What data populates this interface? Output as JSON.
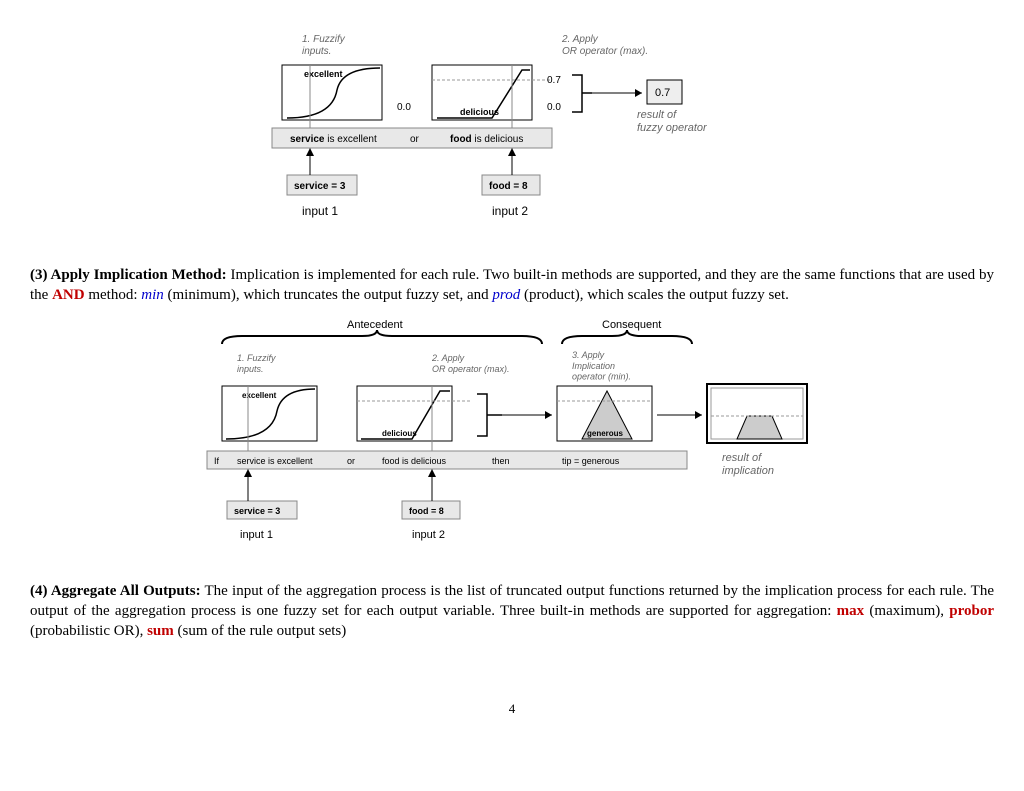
{
  "figure1": {
    "step1_label": "1. Fuzzify\ninputs.",
    "step2_label": "2. Apply\nOR operator (max).",
    "box1_label": "excellent",
    "box2_label": "delicious",
    "val1": "0.0",
    "val2_top": "0.7",
    "val2_bot": "0.0",
    "result_val": "0.7",
    "result_text": "result of\nfuzzy operator",
    "rule_bar_left": "service is excellent",
    "rule_bar_mid": "or",
    "rule_bar_right": "food is delicious",
    "input1_box": "service = 3",
    "input2_box": "food = 8",
    "input1_label": "input 1",
    "input2_label": "input 2",
    "colors": {
      "stroke": "#000000",
      "fill_light": "#e8e8e8",
      "fill_gray": "#cccccc",
      "text_gray": "#555555",
      "text_italic": "#707070"
    }
  },
  "para3": {
    "heading": "(3) Apply Implication Method:",
    "t1": " Implication is implemented for each rule. Two built-in methods are supported, and they are the same functions that are used by the ",
    "and": "AND",
    "t2": " method: ",
    "min": "min",
    "t3": " (minimum), which truncates the output fuzzy set, and ",
    "prod": "prod",
    "t4": " (product), which scales the output fuzzy set."
  },
  "figure2": {
    "antecedent": "Antecedent",
    "consequent": "Consequent",
    "step1_label": "1. Fuzzify\ninputs.",
    "step2_label": "2. Apply\nOR operator (max).",
    "step3_label": "3. Apply\nImplication\noperator (min).",
    "box1_label": "excellent",
    "box2_label": "delicious",
    "box3_label": "generous",
    "rule_if": "If",
    "rule_a": "service is excellent",
    "rule_or": "or",
    "rule_b": "food is delicious",
    "rule_then": "then",
    "rule_c": "tip = generous",
    "result_text": "result of\nimplication",
    "input1_box": "service = 3",
    "input2_box": "food = 8",
    "input1_label": "input 1",
    "input2_label": "input 2"
  },
  "para4": {
    "heading": "(4) Aggregate All Outputs:",
    "t1": " The input of the aggregation process is the list of truncated output functions returned by the implication process for each rule. The output of the aggregation process is one fuzzy set for each output variable. Three built-in methods are supported for aggregation: ",
    "max": "max",
    "t2": " (maximum), ",
    "probor": "probor",
    "t3": " (probabilistic OR), ",
    "sum": "sum",
    "t4": " (sum of the rule output sets)"
  },
  "page_number": "4"
}
